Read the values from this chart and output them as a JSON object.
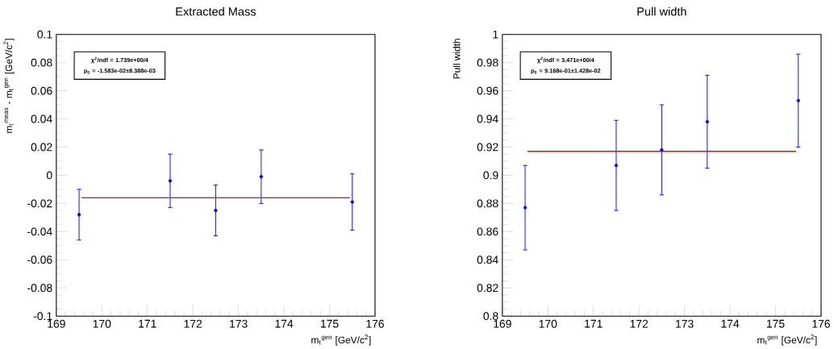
{
  "chart_data": [
    {
      "type": "scatter",
      "title": "Extracted Mass",
      "xlabel": "m$_{t}$$^{gen}$ [GeV/c$^{2}$]",
      "ylabel": "m$_{t}$$^{meas}$ - m$_{t}$$^{gen}$ [GeV/c$^{2}$]",
      "annotations": [
        "χ$^{2}$/ndf = 1.739e+00/4",
        "p$_{0}$ = -1.583e-02±8.388e-03"
      ],
      "xlim": [
        169,
        176
      ],
      "xticks": [
        169,
        170,
        171,
        172,
        173,
        174,
        175,
        176
      ],
      "ylim": [
        -0.1,
        0.1
      ],
      "yticks": [
        -0.1,
        -0.08,
        -0.06,
        -0.04,
        -0.02,
        0,
        0.02,
        0.04,
        0.06,
        0.08,
        0.1
      ],
      "series": [
        {
          "type": "scatter",
          "color": "#0000ff",
          "x": [
            169.5,
            171.5,
            172.5,
            173.5,
            175.5
          ],
          "values": [
            -0.028,
            -0.004,
            -0.025,
            -0.001,
            -0.019
          ],
          "errors": [
            0.018,
            0.019,
            0.018,
            0.019,
            0.02
          ]
        },
        {
          "type": "line",
          "color": "#ff0000",
          "x": [
            169.55,
            175.45
          ],
          "values": [
            -0.016,
            -0.016
          ]
        }
      ]
    },
    {
      "type": "scatter",
      "title": "Pull width",
      "xlabel": "m$_{t}$$^{gen}$ [GeV/c$^{2}$]",
      "ylabel": "Pull width",
      "annotations": [
        "χ$^{2}$/ndf = 3.471e+00/4",
        "p$_{0}$ = 9.168e-01±1.428e-02"
      ],
      "xlim": [
        169,
        176
      ],
      "xticks": [
        169,
        170,
        171,
        172,
        173,
        174,
        175,
        176
      ],
      "ylim": [
        0.8,
        1
      ],
      "yticks": [
        0.8,
        0.82,
        0.84,
        0.86,
        0.88,
        0.9,
        0.92,
        0.94,
        0.96,
        0.98,
        1
      ],
      "series": [
        {
          "type": "scatter",
          "color": "#0000ff",
          "x": [
            169.5,
            171.5,
            172.5,
            173.5,
            175.5
          ],
          "values": [
            0.877,
            0.907,
            0.918,
            0.938,
            0.953
          ],
          "errors": [
            0.03,
            0.032,
            0.032,
            0.033,
            0.033
          ]
        },
        {
          "type": "line",
          "color": "#ff0000",
          "x": [
            169.55,
            175.45
          ],
          "values": [
            0.917,
            0.917
          ]
        }
      ]
    }
  ]
}
